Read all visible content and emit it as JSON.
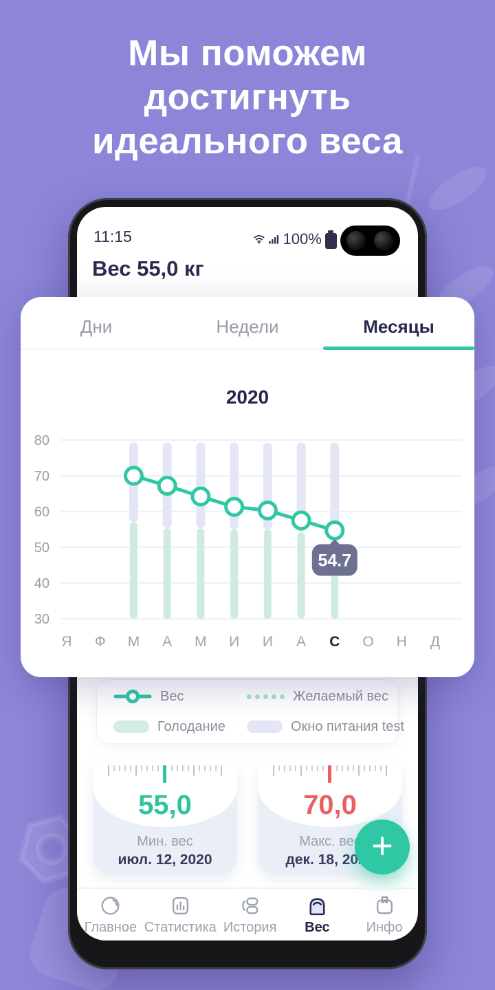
{
  "hero": {
    "line1": "Мы поможем",
    "line2": "достигнуть",
    "line3": "идеального веса"
  },
  "status_bar": {
    "time": "11:15",
    "battery": "100%"
  },
  "app_header": {
    "title": "Вес 55,0 кг"
  },
  "tabs": [
    {
      "label": "Дни",
      "active": false
    },
    {
      "label": "Недели",
      "active": false
    },
    {
      "label": "Месяцы",
      "active": true
    }
  ],
  "chart_data": {
    "type": "line",
    "title": "2020",
    "x_categories": [
      "Я",
      "Ф",
      "М",
      "А",
      "М",
      "И",
      "И",
      "А",
      "С",
      "О",
      "Н",
      "Д"
    ],
    "active_category_index": 8,
    "ylim": [
      30,
      80
    ],
    "yticks": [
      80,
      70,
      60,
      50,
      40,
      30
    ],
    "series": [
      {
        "id": "weight",
        "name": "Вес",
        "type": "line",
        "start": 2,
        "values": [
          70,
          67.2,
          64.2,
          61.3,
          60.3,
          57.5,
          54.7
        ]
      },
      {
        "id": "fasting",
        "name": "Голодание",
        "type": "bar",
        "start": 2,
        "base": 30,
        "tops": [
          57,
          55.3,
          55.3,
          55.1,
          55,
          54.2,
          53.2
        ]
      },
      {
        "id": "window",
        "name": "Окно питания test",
        "type": "bar",
        "start": 2,
        "top": 79.3,
        "bottoms": [
          57,
          55.3,
          55.3,
          55.1,
          55,
          54.2,
          53.2
        ]
      }
    ],
    "tooltip": {
      "value": "54.7",
      "point_index": 6
    },
    "grid": true,
    "legend_position": "below"
  },
  "legend": [
    {
      "label": "Вес",
      "type": "line-marker"
    },
    {
      "label": "Желаемый вес",
      "type": "dotted-line"
    },
    {
      "label": "Голодание",
      "type": "teal-pill"
    },
    {
      "label": "Окно питания test",
      "type": "lavender-pill"
    }
  ],
  "stats_cards": [
    {
      "value": "55,0",
      "label": "Мин. вес",
      "date": "июл. 12, 2020",
      "accent": "#2fc39e"
    },
    {
      "value": "70,0",
      "label": "Макс. вес",
      "date": "дек. 18, 2020",
      "accent": "#ea5f5f"
    }
  ],
  "fab": {
    "label": "+"
  },
  "bottom_nav": [
    {
      "label": "Главное",
      "icon": "gauge",
      "active": false
    },
    {
      "label": "Статистика",
      "icon": "bar-chart",
      "active": false
    },
    {
      "label": "История",
      "icon": "history",
      "active": false
    },
    {
      "label": "Вес",
      "icon": "scale",
      "active": true
    },
    {
      "label": "Инфо",
      "icon": "info-box",
      "active": false
    }
  ],
  "colors": {
    "background": "#8c85d8",
    "accent": "#30c7a4",
    "accent_light": "#a5e3d2",
    "red": "#ea5f5f",
    "navy": "#2b2b52",
    "gray": "#9b9ba8",
    "tooltip_bg": "#6e7092",
    "window_bar": "#e4e6f6",
    "fasting_bar": "#cfeae3",
    "gridline": "#edf2f4",
    "card_bg": "#e9eef7"
  }
}
